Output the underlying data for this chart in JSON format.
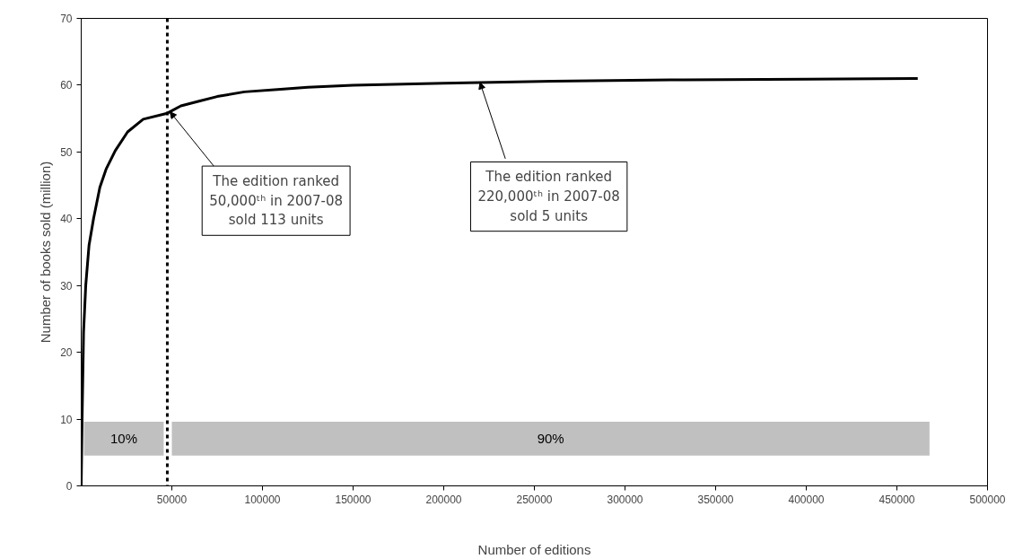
{
  "chart_data": {
    "type": "line",
    "xlabel": "Number of editions",
    "ylabel": "Number of books sold (million)",
    "xlim": [
      0,
      500000
    ],
    "ylim": [
      0,
      70
    ],
    "xticks": [
      50000,
      100000,
      150000,
      200000,
      250000,
      300000,
      350000,
      400000,
      450000,
      500000
    ],
    "yticks": [
      0,
      10,
      20,
      30,
      40,
      50,
      60,
      70
    ],
    "grid": false,
    "marker": "none",
    "line_style": "solid",
    "x": [
      0,
      500,
      1300,
      2500,
      4300,
      6800,
      10300,
      13700,
      18800,
      25600,
      34200,
      47500,
      55000,
      65000,
      75000,
      90000,
      110000,
      125000,
      150000,
      200000,
      220000,
      260000,
      325000,
      400000,
      461500
    ],
    "series": [
      {
        "color": "#000000",
        "values": [
          0,
          10,
          23,
          30,
          36,
          40,
          44.7,
          47.4,
          50.2,
          53,
          54.9,
          55.8,
          56.9,
          57.6,
          58.3,
          59,
          59.4,
          59.7,
          60,
          60.3,
          60.4,
          60.6,
          60.8,
          60.9,
          61
        ]
      }
    ],
    "ref_lines": [
      {
        "axis": "x",
        "value": 47500,
        "color": "#000000",
        "line_style": "dashed"
      }
    ],
    "bands": [
      {
        "axis": "x",
        "from": 1500,
        "to": 45500,
        "label": "10%",
        "color": "#c0c0c0"
      },
      {
        "axis": "x",
        "from": 50000,
        "to": 468000,
        "label": "90%",
        "color": "#c0c0c0"
      }
    ],
    "annotations": [
      {
        "text": "The edition ranked\n50,000ᵗʰ in 2007-08\nsold 113 units",
        "x": 49000,
        "y": 56
      },
      {
        "text": "The edition ranked\n220,000ᵗʰ in 2007-08\nsold 5 units",
        "x": 220000,
        "y": 60.4
      }
    ]
  }
}
